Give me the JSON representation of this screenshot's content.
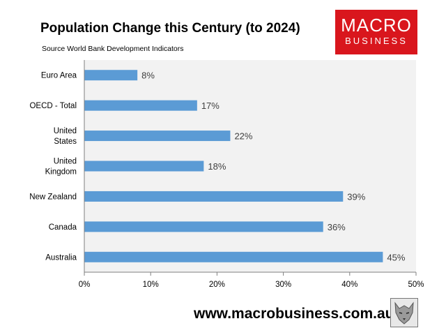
{
  "header": {
    "title": "Population Change this Century (to 2024)",
    "subtitle": "Source World Bank Development Indicators"
  },
  "logo": {
    "line1": "MACRO",
    "line2": "BUSINESS"
  },
  "footer": {
    "url": "www.macrobusiness.com.au"
  },
  "colors": {
    "bar": "#5b9bd5",
    "plot_bg": "#f2f2f2",
    "logo_bg": "#d9161d"
  },
  "chart_data": {
    "type": "bar",
    "orientation": "horizontal",
    "categories": [
      "Euro Area",
      "OECD - Total",
      "United States",
      "United Kingdom",
      "New Zealand",
      "Canada",
      "Australia"
    ],
    "category_label_lines": [
      [
        "Euro Area"
      ],
      [
        "OECD - Total"
      ],
      [
        "United",
        "States"
      ],
      [
        "United",
        "Kingdom"
      ],
      [
        "New Zealand"
      ],
      [
        "Canada"
      ],
      [
        "Australia"
      ]
    ],
    "values": [
      0.08,
      0.17,
      0.22,
      0.18,
      0.39,
      0.36,
      0.45
    ],
    "data_labels": [
      "8%",
      "17%",
      "22%",
      "18%",
      "39%",
      "36%",
      "45%"
    ],
    "xlim": [
      0,
      0.5
    ],
    "x_ticks": [
      0,
      0.1,
      0.2,
      0.3,
      0.4,
      0.5
    ],
    "x_tick_labels": [
      "0%",
      "10%",
      "20%",
      "30%",
      "40%",
      "50%"
    ],
    "grid": false,
    "legend": "none"
  }
}
